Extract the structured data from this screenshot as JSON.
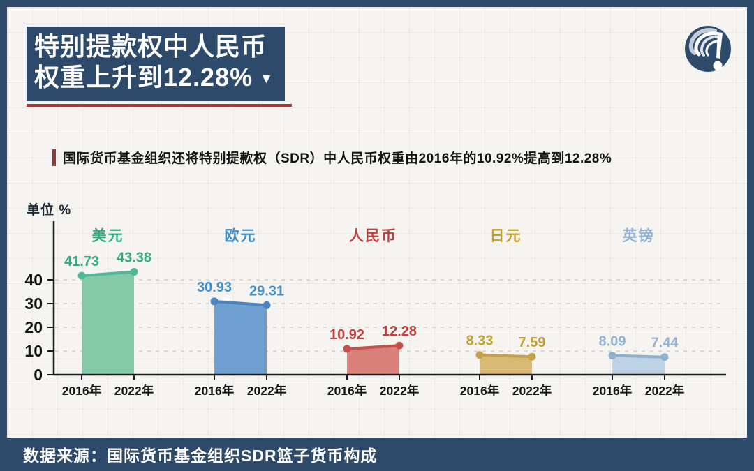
{
  "header": {
    "title_line1": "特别提款权中人民币",
    "title_line2": "权重上升到12.28%",
    "title_marker": "▼"
  },
  "subtitle": {
    "text": "国际货币基金组织还将特别提款权（SDR）中人民币权重由2016年的10.92%提高到12.28%"
  },
  "chart_data": {
    "type": "area",
    "unit_label": "单位 %",
    "categories": [
      "2016年",
      "2022年"
    ],
    "yticks": [
      0,
      10,
      20,
      30,
      40
    ],
    "ylim": [
      0,
      47
    ],
    "grid": "dashed-horizontal",
    "legend_position": "labels-above-groups",
    "series": [
      {
        "name": "美元",
        "values": [
          41.73,
          43.38
        ],
        "fill": "#84caa9",
        "stroke": "#4fb896",
        "label_color": "#35ab85"
      },
      {
        "name": "欧元",
        "values": [
          30.93,
          29.31
        ],
        "fill": "#6f9fd1",
        "stroke": "#4a83bd",
        "label_color": "#3f8ec9"
      },
      {
        "name": "人民币",
        "values": [
          10.92,
          12.28
        ],
        "fill": "#d9807b",
        "stroke": "#c4504c",
        "label_color": "#c43f3c"
      },
      {
        "name": "日元",
        "values": [
          8.33,
          7.59
        ],
        "fill": "#d9ba74",
        "stroke": "#c6a14a",
        "label_color": "#c2a02f"
      },
      {
        "name": "英镑",
        "values": [
          8.09,
          7.44
        ],
        "fill": "#bed3e6",
        "stroke": "#8fb0cd",
        "label_color": "#92b3d2"
      }
    ]
  },
  "footer": {
    "source": "数据来源：国际货币基金组织SDR篮子货币构成"
  },
  "colors": {
    "frame_navy": "#2e4a6b",
    "underline_red": "#9e3a3a",
    "axis": "#1c1c1c",
    "gridline": "#d9d8d2",
    "background": "#f5f4f1"
  }
}
